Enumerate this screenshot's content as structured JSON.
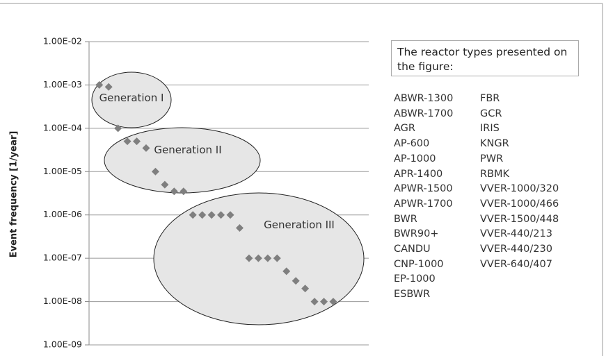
{
  "chart_data": {
    "type": "scatter",
    "y_label": "Event frequency [1/year]",
    "categories": [
      null,
      null,
      null,
      null,
      null,
      null,
      null,
      null,
      null,
      null,
      null,
      null,
      null,
      null,
      null,
      null,
      null,
      null,
      null,
      null,
      null,
      null,
      null,
      null,
      null,
      null
    ],
    "values": [
      0.001,
      0.0009,
      0.0001,
      5e-05,
      5e-05,
      3.5e-05,
      1e-05,
      5e-06,
      3.5e-06,
      3.5e-06,
      1e-06,
      1e-06,
      1e-06,
      1e-06,
      1e-06,
      5e-07,
      1e-07,
      1e-07,
      1e-07,
      1e-07,
      5e-08,
      3e-08,
      2e-08,
      1e-08,
      1e-08,
      1e-08
    ],
    "color": "#7f7f7f",
    "log_scale": true,
    "ylim": [
      1e-09,
      0.01
    ],
    "yticks": [
      {
        "value": 0.01,
        "label": "1.00E-02"
      },
      {
        "value": 0.001,
        "label": "1.00E-03"
      },
      {
        "value": 0.0001,
        "label": "1.00E-04"
      },
      {
        "value": 1e-05,
        "label": "1.00E-05"
      },
      {
        "value": 1e-06,
        "label": "1.00E-06"
      },
      {
        "value": 1e-07,
        "label": "1.00E-07"
      },
      {
        "value": 1e-08,
        "label": "1.00E-08"
      },
      {
        "value": 1e-09,
        "label": "1.00E-09"
      }
    ],
    "grid": true,
    "annotations": [
      "Generation I",
      "Generation II",
      "Generation III"
    ],
    "reactor_types_title": "The reactor types presented on the figure:",
    "reactor_types": [
      "ABWR-1300",
      "ABWR-1700",
      "AGR",
      "AP-600",
      "AP-1000",
      "APR-1400",
      "APWR-1500",
      "APWR-1700",
      "BWR",
      "BWR90+",
      "CANDU",
      "CNP-1000",
      "EP-1000",
      "ESBWR",
      "FBR",
      "GCR",
      "IRIS",
      "KNGR",
      "PWR",
      "RBMK",
      "VVER-1000/320",
      "VVER-1000/466",
      "VVER-1500/448",
      "VVER-440/213",
      "VVER-440/230",
      "VVER-640/407"
    ]
  }
}
